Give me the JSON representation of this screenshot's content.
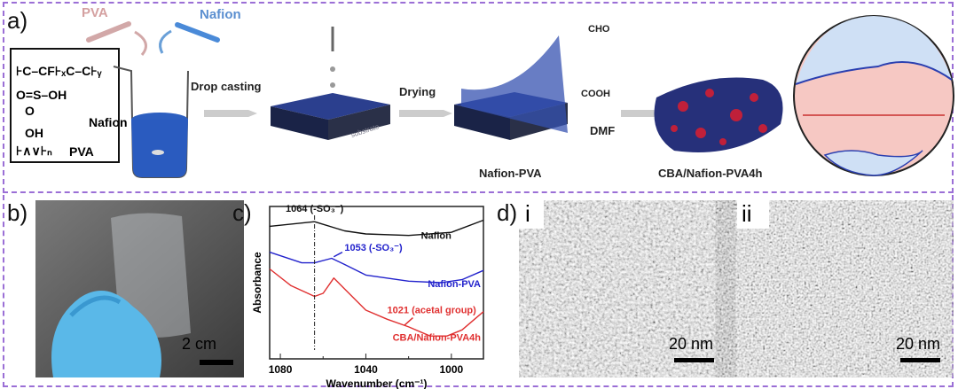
{
  "panel_a": {
    "label": "a)",
    "pva": "PVA",
    "nafion": "Nafion",
    "struct_nafion": "Nafion",
    "struct_pva": "PVA",
    "drop_casting": "Drop casting",
    "drying": "Drying",
    "nafion_pva": "Nafion-PVA",
    "cho": "CHO",
    "cooh": "COOH",
    "dmf": "DMF",
    "cba": "CBA/Nafion-PVA4h",
    "substrate": "substrate"
  },
  "panel_b": {
    "label": "b)",
    "scale": "2 cm"
  },
  "panel_c": {
    "label": "c)"
  },
  "panel_d": {
    "label": "d)",
    "i": "i",
    "ii": "ii",
    "scale_i": "20 nm",
    "scale_ii": "20 nm"
  },
  "colors": {
    "nafion": "#111111",
    "nafion_pva": "#2222cc",
    "cba": "#e03030",
    "frame": "#9b6fd6"
  },
  "chart_data": {
    "type": "line",
    "xlabel": "Wavenumber (cm⁻¹)",
    "ylabel": "Absorbance",
    "xlim": [
      1085,
      985
    ],
    "x_reversed": true,
    "xticks": [
      "1080",
      "1040",
      "1000"
    ],
    "grid": false,
    "series": [
      {
        "name": "Nafion",
        "x": [
          1085,
          1064,
          1050,
          1040,
          1020,
          1000,
          985
        ],
        "y": [
          0.87,
          0.9,
          0.84,
          0.82,
          0.81,
          0.83,
          0.91
        ]
      },
      {
        "name": "Nafion-PVA",
        "x": [
          1085,
          1070,
          1064,
          1056,
          1050,
          1040,
          1020,
          1005,
          995,
          985
        ],
        "y": [
          0.7,
          0.63,
          0.63,
          0.66,
          0.62,
          0.55,
          0.51,
          0.5,
          0.52,
          0.58
        ]
      },
      {
        "name": "CBA/Nafion-PVA4h",
        "x": [
          1085,
          1075,
          1064,
          1060,
          1055,
          1050,
          1040,
          1030,
          1020,
          1010,
          1002,
          995,
          985
        ],
        "y": [
          0.59,
          0.48,
          0.41,
          0.43,
          0.53,
          0.46,
          0.32,
          0.26,
          0.21,
          0.15,
          0.15,
          0.19,
          0.31
        ]
      }
    ],
    "annotations": [
      {
        "text": "1064 (-SO₃⁻)",
        "x": 1064
      },
      {
        "text": "1053 (-SO₃⁻)",
        "x": 1053
      },
      {
        "text": "1021 (acetal group)",
        "x": 1021
      }
    ]
  }
}
